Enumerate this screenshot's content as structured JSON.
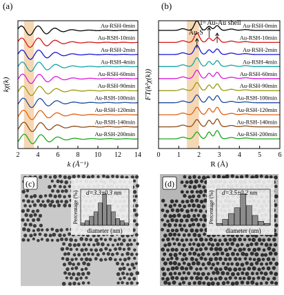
{
  "chart_data": [
    {
      "panel_label": "(a)",
      "type": "line",
      "xlabel": "k (Å⁻¹)",
      "ylabel": "kχ(k)",
      "xlim": [
        2,
        14
      ],
      "xticks": [
        "2",
        "4",
        "6",
        "8",
        "10",
        "12",
        "14"
      ],
      "highlight_band_x": [
        2.6,
        3.6
      ],
      "highlight_color": "#f3c99a",
      "series": [
        {
          "name": "Au-RSH-200min",
          "color": "#1aa81a"
        },
        {
          "name": "Au-RSH-140min",
          "color": "#8a4a17"
        },
        {
          "name": "Au-RSH-120min",
          "color": "#e06010"
        },
        {
          "name": "Au-RSH-100min",
          "color": "#1f4a9e"
        },
        {
          "name": "Au-RSH-90min",
          "color": "#9a9a10"
        },
        {
          "name": "Au-RSH-60min",
          "color": "#d91ad9"
        },
        {
          "name": "Au-RSH-4min",
          "color": "#12a5a5"
        },
        {
          "name": "Au-RSH-2min",
          "color": "#1515d6"
        },
        {
          "name": "Au-RSH-10min",
          "color": "#d41515"
        },
        {
          "name": "Au-RSH-0min",
          "color": "#000000"
        }
      ]
    },
    {
      "panel_label": "(b)",
      "type": "line",
      "xlabel": "R (Å)",
      "ylabel": "FT(k²χ(k))",
      "xlim": [
        0,
        6
      ],
      "xticks": [
        "0",
        "1",
        "2",
        "3",
        "4",
        "5",
        "6"
      ],
      "highlight_band_x": [
        1.4,
        2.0
      ],
      "highlight_color": "#f3c99a",
      "annotations": {
        "au_s": "Au-S",
        "au_au": "1ˢᵗ Au-Au shell"
      },
      "peaks_R": {
        "au_s": 1.9,
        "au_au_1": 2.5,
        "au_au_2": 2.9
      },
      "series": [
        {
          "name": "Au-RSH-200min",
          "color": "#1aa81a"
        },
        {
          "name": "Au-RSH-140min",
          "color": "#8a4a17"
        },
        {
          "name": "Au-RSH-120min",
          "color": "#e06010"
        },
        {
          "name": "Au-RSH-100min",
          "color": "#1f4a9e"
        },
        {
          "name": "Au-RSH-90min",
          "color": "#9a9a10"
        },
        {
          "name": "Au-RSH-60min",
          "color": "#d91ad9"
        },
        {
          "name": "Au-RSH-4min",
          "color": "#12a5a5"
        },
        {
          "name": "Au-RSH-2min",
          "color": "#1515d6"
        },
        {
          "name": "Au-RSH-10min",
          "color": "#d41515"
        },
        {
          "name": "Au-RSH-0min",
          "color": "#000000"
        }
      ]
    },
    {
      "panel_label": "(c)",
      "type": "bar",
      "title": "d=3.3±0.3 nm",
      "xlabel": "diameter (nm)",
      "ylabel": "Percentage (%)",
      "values": [
        1,
        2,
        4,
        6,
        10,
        14,
        9,
        6,
        3,
        2,
        1
      ]
    },
    {
      "panel_label": "(d)",
      "type": "bar",
      "title": "d=3.5±0.2 nm",
      "xlabel": "diameter (nm)",
      "ylabel": "Percentage (%)",
      "values": [
        1,
        3,
        6,
        9,
        16,
        10,
        5,
        2,
        1
      ]
    }
  ]
}
